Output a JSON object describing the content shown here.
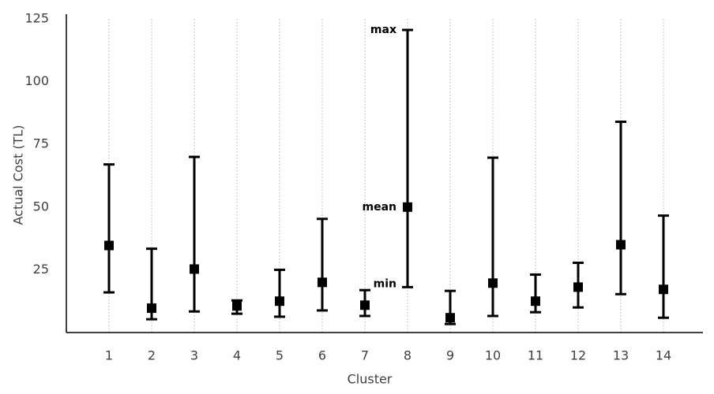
{
  "chart_data": {
    "type": "range",
    "x_label": "Cluster",
    "y_label": "Actual Cost (TL)",
    "categories": [
      "1",
      "2",
      "3",
      "4",
      "5",
      "6",
      "7",
      "8",
      "9",
      "10",
      "11",
      "12",
      "13",
      "14"
    ],
    "max": [
      67,
      33.4,
      70,
      12.8,
      25,
      45.3,
      16.9,
      120.6,
      16.6,
      69.7,
      23.1,
      27.8,
      84,
      46.6
    ],
    "mean": [
      34.7,
      9.7,
      25.3,
      10.6,
      12.5,
      20,
      10.9,
      50,
      5.9,
      19.7,
      12.5,
      18.1,
      35,
      17.2
    ],
    "min": [
      16,
      5.3,
      8.4,
      7.5,
      6.3,
      8.8,
      6.6,
      18.1,
      3.4,
      6.6,
      8.1,
      10,
      15.3,
      5.9
    ],
    "annotations": [
      "max",
      "mean",
      "min"
    ],
    "color": "#000000",
    "ylim": [
      0,
      125
    ],
    "yticks": [
      25,
      50,
      75,
      100,
      125
    ],
    "grid": true
  }
}
